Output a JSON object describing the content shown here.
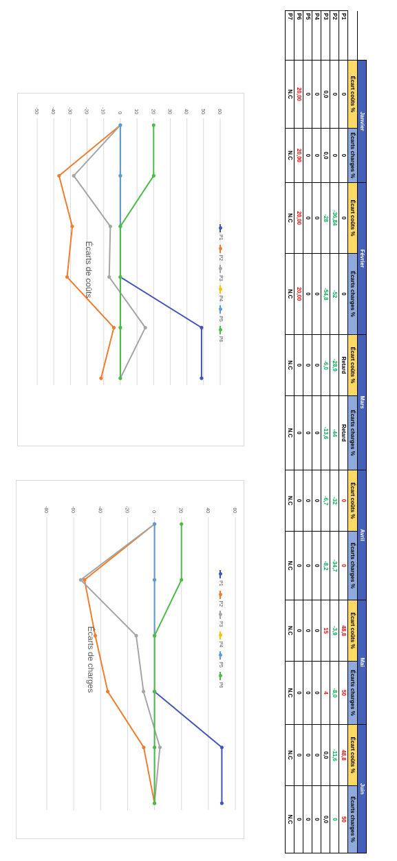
{
  "table": {
    "months": [
      "Janvier",
      "Février",
      "Mars",
      "Avril",
      "Mai",
      "Juin"
    ],
    "col_cost_label": "Écart coûts %",
    "col_charge_label": "Écarts charges %",
    "rows": [
      {
        "label": "P1",
        "cells": [
          {
            "v": "0",
            "c": "zero"
          },
          {
            "v": "0",
            "c": "zero"
          },
          {
            "v": "0",
            "c": "zero"
          },
          {
            "v": "0",
            "c": "zero"
          },
          {
            "v": "Retard",
            "c": "zero"
          },
          {
            "v": "Retard",
            "c": "zero"
          },
          {
            "v": "0",
            "c": "zero-red"
          },
          {
            "v": "0",
            "c": "zero-red"
          },
          {
            "v": "48,8",
            "c": "pos"
          },
          {
            "v": "50",
            "c": "pos"
          },
          {
            "v": "48,8",
            "c": "pos"
          },
          {
            "v": "50",
            "c": "pos"
          }
        ]
      },
      {
        "label": "P2",
        "cells": [
          {
            "v": "0",
            "c": "zero"
          },
          {
            "v": "0",
            "c": "zero"
          },
          {
            "v": "-36,84",
            "c": "neg"
          },
          {
            "v": "-52",
            "c": "neg"
          },
          {
            "v": "-28,9",
            "c": "neg"
          },
          {
            "v": "-44",
            "c": "neg"
          },
          {
            "v": "-32",
            "c": "neg"
          },
          {
            "v": "-34,7",
            "c": "neg"
          },
          {
            "v": "-3,9",
            "c": "neg"
          },
          {
            "v": "-8,0",
            "c": "neg"
          },
          {
            "v": "-11,6",
            "c": "neg"
          },
          {
            "v": "0",
            "c": "zero-green"
          }
        ]
      },
      {
        "label": "P3",
        "cells": [
          {
            "v": "0,0",
            "c": "zero"
          },
          {
            "v": "0,0",
            "c": "zero"
          },
          {
            "v": "-28",
            "c": "neg"
          },
          {
            "v": "-54,8",
            "c": "neg"
          },
          {
            "v": "-6,0",
            "c": "neg"
          },
          {
            "v": "-13,6",
            "c": "neg"
          },
          {
            "v": "-6,7",
            "c": "neg"
          },
          {
            "v": "-8,2",
            "c": "neg"
          },
          {
            "v": "15",
            "c": "pos"
          },
          {
            "v": "4",
            "c": "pos"
          },
          {
            "v": "0,0",
            "c": "zero"
          },
          {
            "v": "0,0",
            "c": "zero"
          }
        ]
      },
      {
        "label": "P4",
        "cells": [
          {
            "v": "0",
            "c": "zero"
          },
          {
            "v": "0",
            "c": "zero"
          },
          {
            "v": "0",
            "c": "zero"
          },
          {
            "v": "0",
            "c": "zero"
          },
          {
            "v": "0",
            "c": "zero"
          },
          {
            "v": "0",
            "c": "zero"
          },
          {
            "v": "0",
            "c": "zero"
          },
          {
            "v": "0",
            "c": "zero"
          },
          {
            "v": "0",
            "c": "zero"
          },
          {
            "v": "0",
            "c": "zero"
          },
          {
            "v": "0",
            "c": "zero"
          },
          {
            "v": "0",
            "c": "zero"
          }
        ]
      },
      {
        "label": "P5",
        "cells": [
          {
            "v": "0",
            "c": "zero"
          },
          {
            "v": "0",
            "c": "zero"
          },
          {
            "v": "0",
            "c": "zero"
          },
          {
            "v": "0",
            "c": "zero"
          },
          {
            "v": "0",
            "c": "zero"
          },
          {
            "v": "0",
            "c": "zero"
          },
          {
            "v": "0",
            "c": "zero"
          },
          {
            "v": "0",
            "c": "zero"
          },
          {
            "v": "0",
            "c": "zero"
          },
          {
            "v": "0",
            "c": "zero"
          },
          {
            "v": "0",
            "c": "zero"
          },
          {
            "v": "0",
            "c": "zero"
          }
        ]
      },
      {
        "label": "P6",
        "cells": [
          {
            "v": "20,00",
            "c": "pos"
          },
          {
            "v": "20,00",
            "c": "pos"
          },
          {
            "v": "20,00",
            "c": "pos"
          },
          {
            "v": "20,00",
            "c": "pos"
          },
          {
            "v": "0",
            "c": "zero"
          },
          {
            "v": "0",
            "c": "zero"
          },
          {
            "v": "0",
            "c": "zero"
          },
          {
            "v": "0",
            "c": "zero"
          },
          {
            "v": "0",
            "c": "zero"
          },
          {
            "v": "0",
            "c": "zero"
          },
          {
            "v": "0",
            "c": "zero"
          },
          {
            "v": "0",
            "c": "zero"
          }
        ]
      },
      {
        "label": "P7",
        "cells": [
          {
            "v": "N.C",
            "c": "zero"
          },
          {
            "v": "N.C",
            "c": "zero"
          },
          {
            "v": "N.C",
            "c": "zero"
          },
          {
            "v": "N.C",
            "c": "zero"
          },
          {
            "v": "N.C",
            "c": "zero"
          },
          {
            "v": "N.C",
            "c": "zero"
          },
          {
            "v": "N.C",
            "c": "zero"
          },
          {
            "v": "N.C",
            "c": "zero"
          },
          {
            "v": "N.C",
            "c": "zero"
          },
          {
            "v": "N.C",
            "c": "zero"
          },
          {
            "v": "N.C",
            "c": "zero"
          },
          {
            "v": "N.C",
            "c": "zero"
          }
        ]
      }
    ]
  },
  "series_colors": {
    "P1": "#4355b9",
    "P2": "#ed7d31",
    "P3": "#a5a5a5",
    "P4": "#ffc000",
    "P5": "#5b9bd5",
    "P6": "#4cbb47"
  },
  "chart_data": [
    {
      "type": "line",
      "title": "Écarts de coûts",
      "categories": [
        "Janvier",
        "Février",
        "Mars",
        "Avril",
        "Mai",
        "Juin"
      ],
      "ylim": [
        -50,
        60
      ],
      "yticks": [
        -50,
        -40,
        -30,
        -20,
        -10,
        0,
        10,
        20,
        30,
        40,
        50,
        60
      ],
      "grid": true,
      "legend": "bottom",
      "series": [
        {
          "name": "P1",
          "values": [
            0,
            0,
            0,
            0,
            48.8,
            48.8
          ]
        },
        {
          "name": "P2",
          "values": [
            0,
            -36.84,
            -28.9,
            -32,
            -3.9,
            -11.6
          ]
        },
        {
          "name": "P3",
          "values": [
            0,
            -28,
            -6,
            -6.7,
            15,
            0
          ]
        },
        {
          "name": "P4",
          "values": [
            0,
            0,
            0,
            0,
            0,
            0
          ]
        },
        {
          "name": "P5",
          "values": [
            0,
            0,
            0,
            0,
            0,
            0
          ]
        },
        {
          "name": "P6",
          "values": [
            20,
            20,
            0,
            0,
            0,
            0
          ]
        }
      ]
    },
    {
      "type": "line",
      "title": "Écarts de charges",
      "categories": [
        "Janvier",
        "Février",
        "Mars",
        "Avril",
        "Mai",
        "Juin"
      ],
      "ylim": [
        -80,
        60
      ],
      "yticks": [
        -80,
        -60,
        -40,
        -20,
        0,
        20,
        40,
        60
      ],
      "grid": true,
      "legend": "bottom",
      "series": [
        {
          "name": "P1",
          "values": [
            0,
            0,
            0,
            0,
            50,
            50
          ]
        },
        {
          "name": "P2",
          "values": [
            0,
            -52,
            -44,
            -34.7,
            -8,
            0
          ]
        },
        {
          "name": "P3",
          "values": [
            0,
            -54.8,
            -13.6,
            -8.2,
            4,
            0
          ]
        },
        {
          "name": "P4",
          "values": [
            0,
            0,
            0,
            0,
            0,
            0
          ]
        },
        {
          "name": "P5",
          "values": [
            0,
            0,
            0,
            0,
            0,
            0
          ]
        },
        {
          "name": "P6",
          "values": [
            20,
            20,
            0,
            0,
            0,
            0
          ]
        }
      ]
    }
  ]
}
